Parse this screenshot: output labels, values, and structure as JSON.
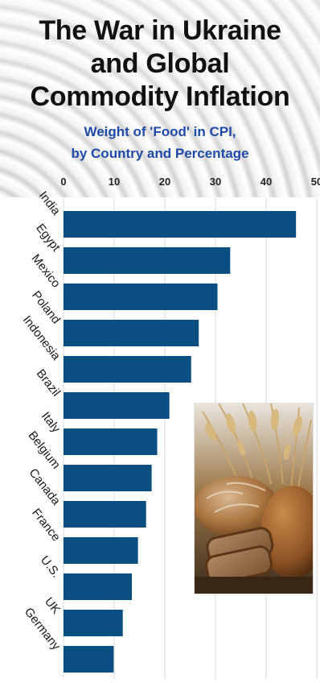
{
  "title": {
    "line1": "The War in Ukraine",
    "line2": "and Global",
    "line3": "Commodity Inflation"
  },
  "subtitle": {
    "line1": "Weight of 'Food' in CPI,",
    "line2": "by Country and Percentage"
  },
  "colors": {
    "bar": "#0b4f82",
    "subtitle": "#1f4aa8",
    "gridline": "#d9d9d9"
  },
  "photo": {
    "icon": "wheat-and-bread-photo"
  },
  "chart_data": {
    "type": "bar",
    "orientation": "horizontal",
    "categories": [
      "India",
      "Egypt",
      "Mexico",
      "Poland",
      "Indonesia",
      "Brazil",
      "Italy",
      "Belgium",
      "Canada",
      "France",
      "U.S.",
      "UK",
      "Germany"
    ],
    "values": [
      45.9,
      32.9,
      30.4,
      26.7,
      25.2,
      20.9,
      18.5,
      17.4,
      16.3,
      14.7,
      13.5,
      11.7,
      9.9
    ],
    "xticks": [
      "0",
      "10",
      "20",
      "30",
      "40",
      "50"
    ],
    "xlim": [
      0,
      50
    ],
    "grid": true,
    "title": "Weight of 'Food' in CPI, by Country and Percentage",
    "xlabel": "",
    "ylabel": ""
  }
}
